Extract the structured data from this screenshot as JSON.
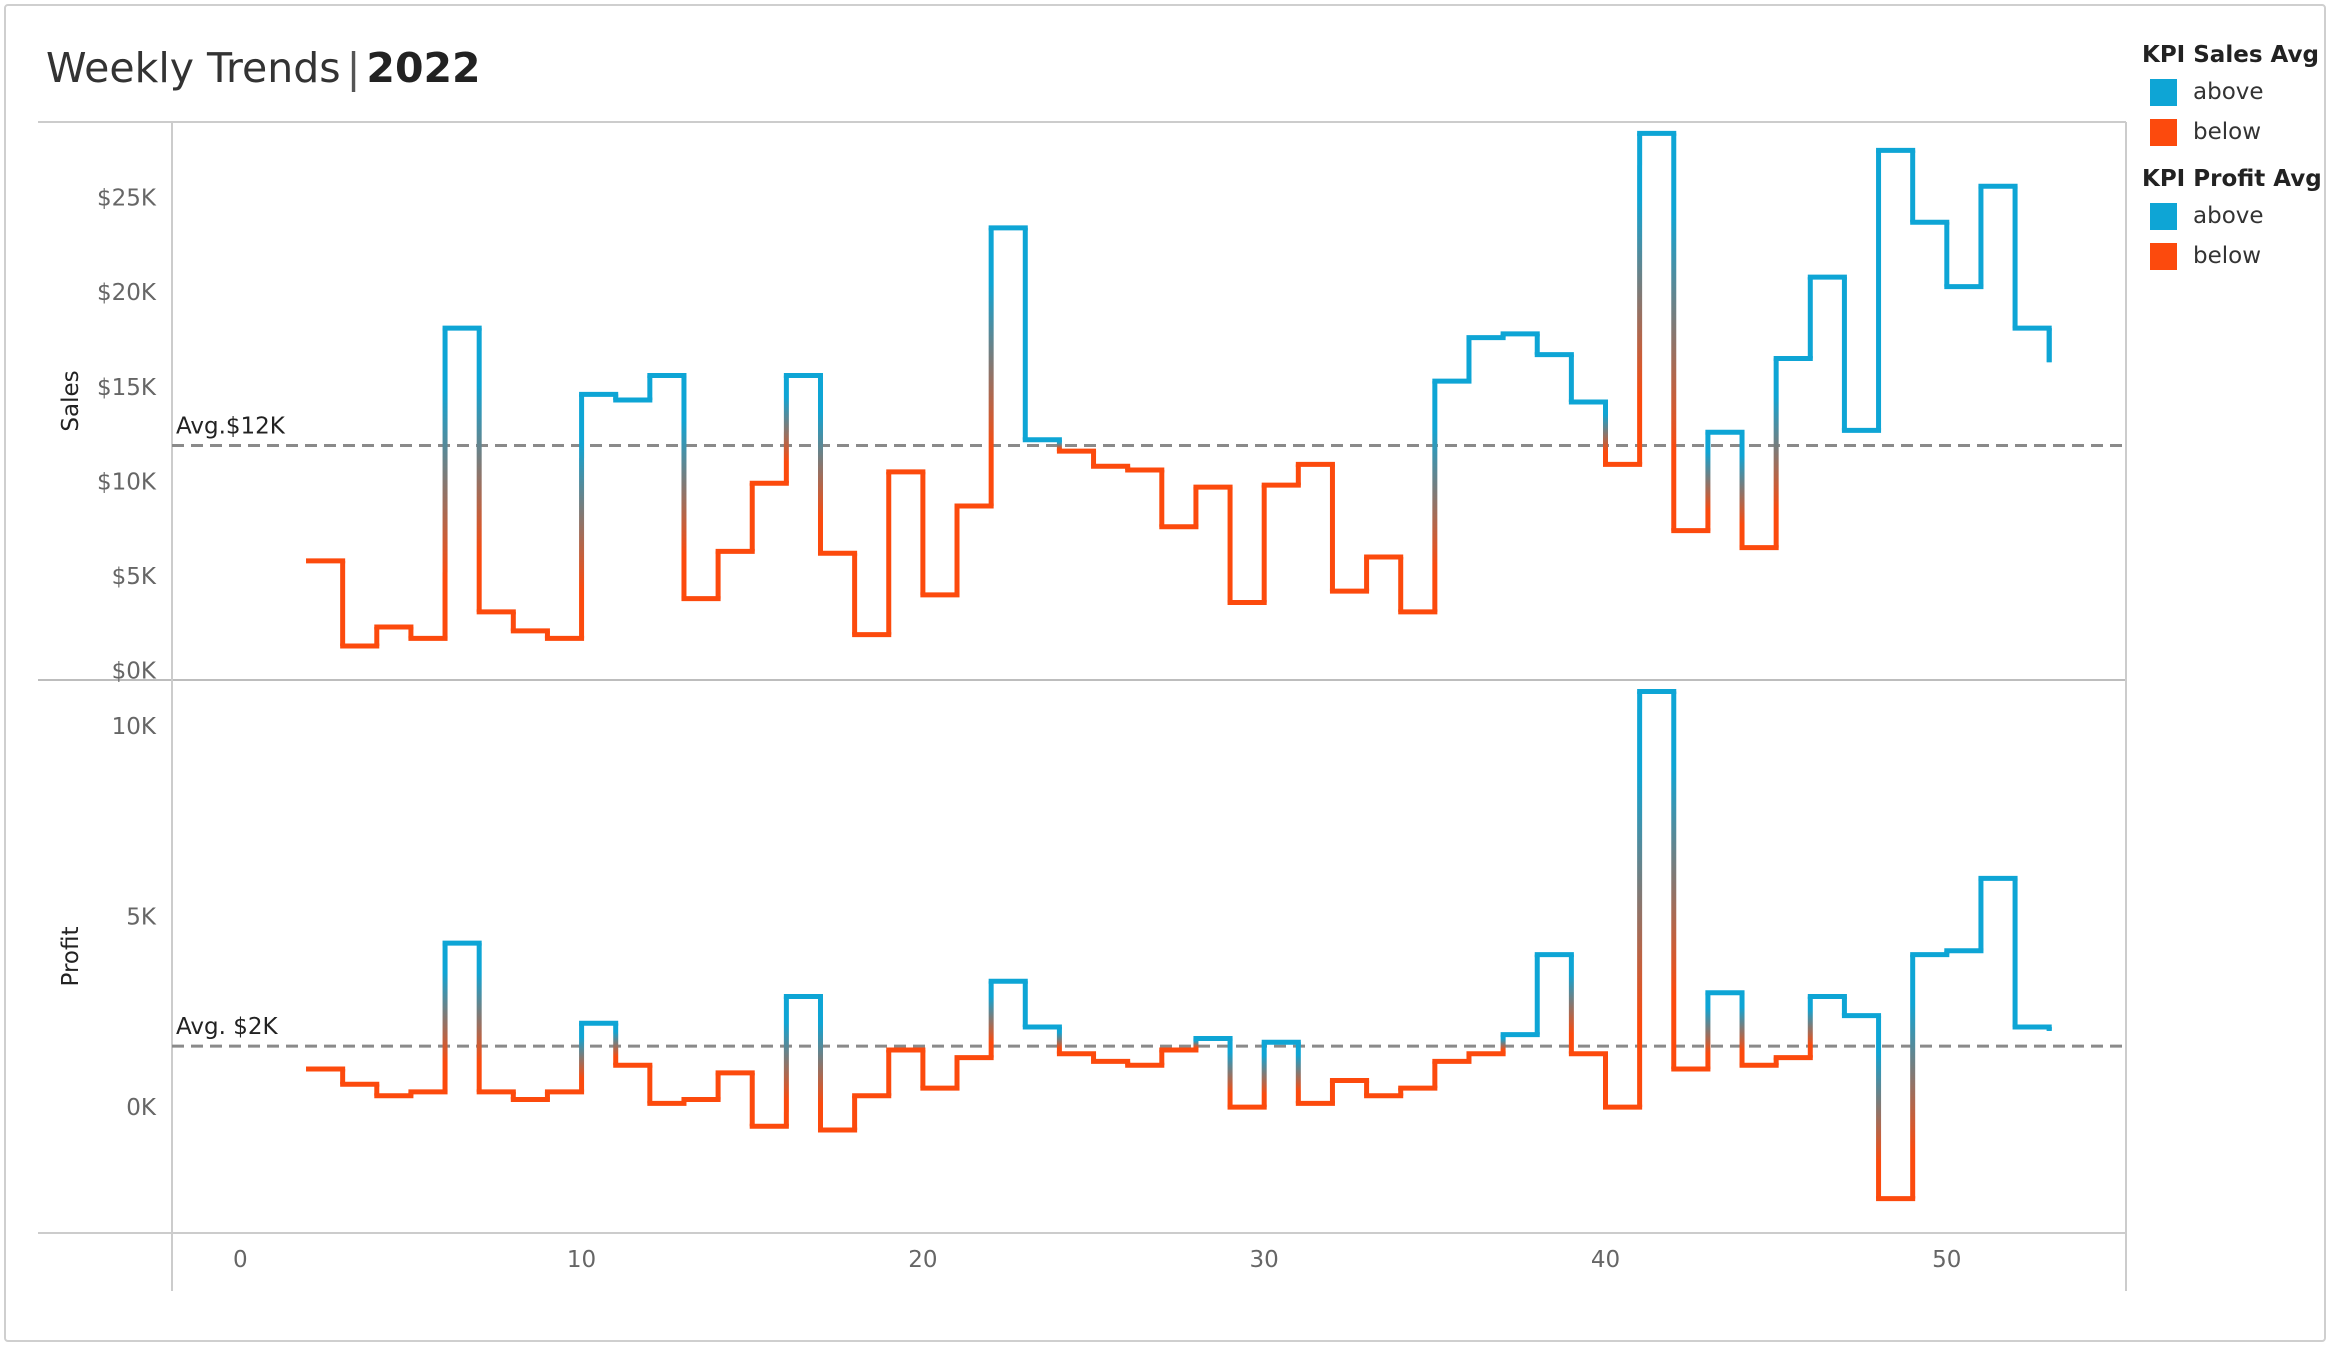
{
  "title": {
    "main": "Weekly Trends",
    "separator": "|",
    "year": "2022"
  },
  "colors": {
    "above": "#0ea5d5",
    "below": "#fc4a0d",
    "avg_line": "#8a8a8a",
    "axis": "#cccccc",
    "tick": "#666666"
  },
  "legend": [
    {
      "title": "KPI Sales Avg",
      "items": [
        {
          "label": "above",
          "color": "#0ea5d5"
        },
        {
          "label": "below",
          "color": "#fc4a0d"
        }
      ]
    },
    {
      "title": "KPI Profit Avg",
      "items": [
        {
          "label": "above",
          "color": "#0ea5d5"
        },
        {
          "label": "below",
          "color": "#fc4a0d"
        }
      ]
    }
  ],
  "chart_data": [
    {
      "type": "line",
      "line_shape": "step",
      "ylabel": "Sales",
      "ylim": [
        -500,
        29000
      ],
      "yticks": [
        {
          "value": 0,
          "label": "$0K"
        },
        {
          "value": 5000,
          "label": "$5K"
        },
        {
          "value": 10000,
          "label": "$10K"
        },
        {
          "value": 15000,
          "label": "$15K"
        },
        {
          "value": 20000,
          "label": "$20K"
        },
        {
          "value": 25000,
          "label": "$25K"
        }
      ],
      "average": {
        "value": 11900,
        "label": "Avg.$12K"
      },
      "x": [
        2,
        3,
        4,
        5,
        6,
        7,
        8,
        9,
        10,
        11,
        12,
        13,
        14,
        15,
        16,
        17,
        18,
        19,
        20,
        21,
        22,
        23,
        24,
        25,
        26,
        27,
        28,
        29,
        30,
        31,
        32,
        33,
        34,
        35,
        36,
        37,
        38,
        39,
        40,
        41,
        42,
        43,
        44,
        45,
        46,
        47,
        48,
        49,
        50,
        51,
        52,
        53
      ],
      "values": [
        5800,
        1300,
        2300,
        1700,
        18100,
        3100,
        2100,
        1700,
        14600,
        14300,
        15600,
        3800,
        6300,
        9900,
        15600,
        6200,
        1900,
        10500,
        4000,
        8700,
        23400,
        12200,
        11600,
        10800,
        10600,
        7600,
        9700,
        3600,
        9800,
        10900,
        4200,
        6000,
        3100,
        15300,
        17600,
        17800,
        16700,
        14200,
        10900,
        28400,
        7400,
        12600,
        6500,
        16500,
        20800,
        12700,
        27500,
        23700,
        20300,
        25600,
        18100,
        16300
      ]
    },
    {
      "type": "line",
      "line_shape": "step",
      "ylabel": "Profit",
      "ylim": [
        -3300,
        11200
      ],
      "yticks": [
        {
          "value": 0,
          "label": "0K"
        },
        {
          "value": 5000,
          "label": "5K"
        },
        {
          "value": 10000,
          "label": "10K"
        }
      ],
      "average": {
        "value": 1600,
        "label": "Avg. $2K"
      },
      "x": [
        2,
        3,
        4,
        5,
        6,
        7,
        8,
        9,
        10,
        11,
        12,
        13,
        14,
        15,
        16,
        17,
        18,
        19,
        20,
        21,
        22,
        23,
        24,
        25,
        26,
        27,
        28,
        29,
        30,
        31,
        32,
        33,
        34,
        35,
        36,
        37,
        38,
        39,
        40,
        41,
        42,
        43,
        44,
        45,
        46,
        47,
        48,
        49,
        50,
        51,
        52,
        53
      ],
      "values": [
        1000,
        600,
        300,
        400,
        4300,
        400,
        200,
        400,
        2200,
        1100,
        100,
        200,
        900,
        -500,
        2900,
        -600,
        300,
        1500,
        500,
        1300,
        3300,
        2100,
        1400,
        1200,
        1100,
        1500,
        1800,
        0,
        1700,
        100,
        700,
        300,
        500,
        1200,
        1400,
        1900,
        4000,
        1400,
        0,
        10900,
        1000,
        3000,
        1100,
        1300,
        2900,
        2400,
        -2400,
        4000,
        4100,
        6000,
        2100,
        2000
      ]
    },
    {
      "type": "axis",
      "xticks": [
        {
          "value": 0,
          "label": "0"
        },
        {
          "value": 10,
          "label": "10"
        },
        {
          "value": 20,
          "label": "20"
        },
        {
          "value": 30,
          "label": "30"
        },
        {
          "value": 40,
          "label": "40"
        },
        {
          "value": 50,
          "label": "50"
        }
      ]
    }
  ]
}
